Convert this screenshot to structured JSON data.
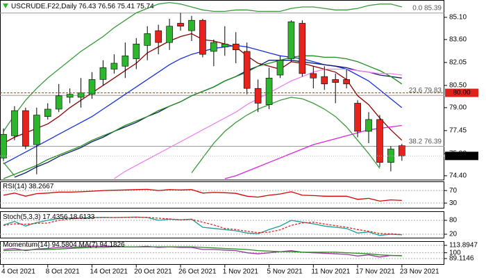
{
  "chart_data": [
    {
      "type": "candlestick",
      "title": "USCRUDE.F22,Daily",
      "categories": [
        "4 Oct 2021",
        null,
        null,
        null,
        "8 Oct 2021",
        null,
        null,
        null,
        "14 Oct 2021",
        null,
        null,
        null,
        "20 Oct 2021",
        null,
        null,
        null,
        "26 Oct 2021",
        null,
        null,
        null,
        "1 Nov 2021",
        null,
        null,
        null,
        "5 Nov 2021",
        null,
        null,
        null,
        "11 Nov 2021",
        null,
        null,
        null,
        "17 Nov 2021",
        null,
        null,
        null,
        "23 Nov 2021"
      ],
      "open": [
        75.6,
        77.1,
        78.8,
        76.5,
        78.4,
        78.9,
        79.7,
        79.7,
        79.9,
        80.9,
        81.6,
        81.8,
        82.3,
        83.2,
        84.2,
        83.4,
        84.7,
        84.2,
        84.9,
        82.8,
        83.1,
        83.3,
        82.8,
        80.3,
        79.2,
        81.2,
        82.3,
        84.7,
        81.3,
        81.1,
        80.9,
        80.9,
        79.3,
        77.4,
        78.2,
        75.3,
        76.43
      ],
      "high": [
        77.6,
        79.1,
        79.0,
        79.0,
        79.3,
        80.6,
        80.3,
        81.0,
        81.4,
        82.2,
        82.6,
        83.4,
        83.7,
        84.5,
        84.6,
        85.0,
        85.4,
        85.2,
        85.0,
        83.6,
        84.5,
        84.1,
        83.4,
        80.9,
        81.7,
        82.5,
        84.9,
        84.9,
        81.8,
        81.8,
        81.3,
        81.6,
        79.5,
        78.7,
        78.5,
        76.4,
        76.56
      ],
      "low": [
        75.4,
        76.8,
        76.2,
        74.5,
        78.2,
        78.7,
        79.3,
        79.0,
        79.6,
        80.5,
        81.3,
        81.0,
        81.6,
        82.2,
        82.6,
        82.9,
        84.2,
        83.5,
        82.4,
        81.8,
        82.5,
        82.0,
        79.9,
        78.7,
        78.9,
        81.0,
        82.1,
        81.1,
        80.3,
        80.2,
        79.3,
        80.3,
        77.0,
        76.6,
        75.0,
        74.7,
        75.41
      ],
      "close": [
        77.2,
        78.8,
        76.4,
        78.5,
        78.9,
        79.8,
        79.9,
        80.0,
        80.9,
        81.7,
        82.0,
        82.5,
        83.3,
        84.0,
        83.4,
        84.5,
        84.5,
        84.9,
        82.6,
        83.4,
        83.3,
        82.9,
        80.3,
        79.3,
        81.0,
        82.2,
        84.8,
        81.3,
        81.0,
        80.6,
        80.7,
        80.6,
        77.4,
        78.2,
        75.3,
        76.2,
        75.74
      ],
      "up_color": "#2db52d",
      "down_color": "#e8221c",
      "series": [
        {
          "color": "#8b0000",
          "values": [
            76.6,
            77.0,
            77.3,
            77.6,
            77.9,
            78.4,
            79.0,
            79.5,
            80.0,
            80.5,
            81.0,
            81.5,
            82.0,
            82.7,
            83.1,
            83.5,
            83.8,
            84.0,
            83.6,
            83.5,
            83.3,
            83.1,
            82.5,
            82.0,
            81.8,
            81.6,
            82.1,
            82.0,
            81.8,
            81.6,
            81.4,
            80.9,
            79.8,
            79.2,
            78.3,
            77.5,
            76.8
          ]
        },
        {
          "color": "#1530e0",
          "values": [
            75.2,
            75.6,
            76.0,
            76.4,
            76.8,
            77.2,
            77.6,
            78.0,
            78.4,
            78.9,
            79.4,
            79.9,
            80.4,
            80.9,
            81.4,
            81.9,
            82.3,
            82.6,
            82.8,
            83.0,
            83.1,
            83.2,
            83.1,
            82.9,
            82.7,
            82.5,
            82.4,
            82.3,
            82.1,
            81.9,
            81.8,
            81.6,
            81.2,
            80.8,
            80.2,
            79.6,
            79.0
          ]
        },
        {
          "color": "#0a1a6a",
          "values": [
            null,
            74.3,
            74.6,
            75.0,
            75.3,
            75.7,
            76.0,
            76.3,
            76.7,
            77.0,
            77.4,
            77.7,
            78.0,
            78.4,
            78.7,
            79.1,
            79.4,
            79.8,
            80.1,
            80.4,
            80.8,
            81.1,
            81.5,
            81.8,
            82.2,
            82.2,
            82.2,
            82.1,
            82.0,
            81.9,
            81.8,
            81.7,
            81.5,
            81.4,
            81.2,
            81.1,
            81.0
          ]
        },
        {
          "color": "#1e8c1e",
          "values": [
            74.2,
            74.5,
            74.8,
            75.1,
            75.5,
            75.8,
            76.1,
            76.4,
            76.8,
            77.1,
            77.4,
            77.8,
            78.1,
            78.4,
            78.8,
            79.1,
            79.4,
            79.8,
            80.1,
            80.4,
            80.8,
            81.1,
            81.4,
            81.8,
            82.0,
            82.2,
            82.4,
            82.5,
            82.5,
            82.4,
            82.4,
            82.3,
            82.1,
            81.8,
            81.5,
            81.1,
            80.6
          ]
        },
        {
          "color": "#ee82ee",
          "values": [
            null,
            null,
            null,
            null,
            null,
            null,
            null,
            null,
            null,
            null,
            74.2,
            74.7,
            75.1,
            75.5,
            75.9,
            76.3,
            76.7,
            77.1,
            77.5,
            77.9,
            78.3,
            78.7,
            79.2,
            79.6,
            80.0,
            80.4,
            80.8,
            81.1,
            81.4,
            81.6,
            81.6,
            81.6,
            81.5,
            81.4,
            81.3,
            81.3,
            81.2
          ]
        },
        {
          "color": "#e020e0",
          "values": [
            null,
            null,
            null,
            null,
            null,
            null,
            null,
            null,
            null,
            null,
            null,
            null,
            null,
            null,
            null,
            null,
            null,
            null,
            null,
            null,
            74.2,
            74.4,
            74.7,
            75.0,
            75.3,
            75.6,
            75.9,
            76.2,
            76.5,
            76.7,
            76.9,
            77.1,
            77.3,
            77.5,
            77.6,
            77.7,
            77.8
          ]
        },
        {
          "color": "#3a9a3a",
          "values": [
            77.4,
            78.5,
            79.5,
            80.3,
            81.0,
            81.6,
            82.2,
            82.8,
            83.3,
            83.8,
            84.4,
            84.9,
            85.4,
            85.7,
            86.0,
            86.1,
            86.0,
            85.8,
            85.6,
            85.5,
            85.5,
            85.6,
            85.6,
            85.5,
            85.5,
            85.5,
            85.7,
            85.8,
            85.8,
            85.7,
            85.6,
            85.6,
            85.7,
            85.9,
            86.0,
            86.0,
            85.8
          ]
        },
        {
          "color": "#3a9a3a",
          "values": [
            75.3,
            74.4,
            null,
            null,
            null,
            null,
            null,
            null,
            null,
            null,
            null,
            null,
            null,
            null,
            null,
            null,
            null,
            74.6,
            75.6,
            76.6,
            77.4,
            78.0,
            78.5,
            78.9,
            79.2,
            79.5,
            79.7,
            79.6,
            79.3,
            78.9,
            78.4,
            77.7,
            76.8,
            75.9,
            74.9,
            null,
            null
          ]
        }
      ],
      "levels": [
        {
          "label": "0.0",
          "value": 85.39
        },
        {
          "label": "23.6",
          "value": 79.83
        },
        {
          "label": "38.2",
          "value": 76.39
        }
      ],
      "hlines": [
        {
          "value": 80,
          "label": "80.00",
          "color": "#e0221c"
        }
      ],
      "ylim": [
        74.16,
        86.27
      ],
      "yticks": [
        {
          "value": 85.1,
          "label": "85.10"
        },
        {
          "value": 83.6,
          "label": "83.60"
        },
        82.05,
        {
          "value": 80.5,
          "label": "80.50"
        },
        {
          "value": 79,
          "label": "79.00"
        },
        77.45,
        {
          "value": 75.9,
          "label": "75.90"
        },
        {
          "value": 74.4,
          "label": "74.40"
        }
      ]
    },
    {
      "type": "line",
      "series": [
        {
          "name": "RSI(14)",
          "color": "#d40000",
          "values": [
            55,
            62,
            52,
            60,
            62,
            65,
            65,
            66,
            68,
            70,
            71,
            72,
            73,
            74,
            70,
            73,
            72,
            73,
            62,
            64,
            63,
            61,
            52,
            49,
            55,
            59,
            66,
            55,
            54,
            52,
            52,
            52,
            42,
            45,
            36,
            40,
            38.2667
          ]
        }
      ],
      "ylim": [
        17,
        97
      ],
      "yticks": [
        30,
        70
      ],
      "grid": true
    },
    {
      "type": "line",
      "series": [
        {
          "name": "Stoch(5,3,3)",
          "color": "#1a9a9a",
          "values": [
            60,
            75,
            55,
            70,
            80,
            88,
            90,
            90,
            92,
            93,
            92,
            93,
            94,
            92,
            80,
            85,
            82,
            85,
            50,
            45,
            40,
            35,
            25,
            22,
            40,
            55,
            80,
            72,
            65,
            55,
            50,
            45,
            25,
            30,
            15,
            20,
            17.4356
          ]
        },
        {
          "color": "#e0221c",
          "dashed": true,
          "values": [
            58,
            65,
            63,
            67,
            68,
            80,
            86,
            89,
            91,
            92,
            92,
            93,
            93,
            93,
            89,
            86,
            82,
            84,
            72,
            60,
            45,
            40,
            33,
            27,
            29,
            39,
            58,
            69,
            72,
            64,
            57,
            50,
            40,
            33,
            23,
            22,
            18.6133
          ]
        }
      ],
      "ylim": [
        5,
        113
      ],
      "yticks": [
        20,
        80
      ],
      "grid": true
    },
    {
      "type": "line",
      "series": [
        {
          "name": "Momentum(14)",
          "color": "#9a309a",
          "values": [
            106,
            108,
            104,
            107,
            108,
            110,
            110,
            111,
            112,
            112,
            112,
            111,
            111,
            112,
            110,
            111,
            110,
            110,
            106,
            106,
            105,
            104,
            100,
            98,
            100,
            102,
            104,
            101,
            100,
            99,
            98,
            97,
            94,
            96,
            92,
            95,
            94.5804
          ]
        },
        {
          "name": "MA(7)",
          "color": "#2a8a2a",
          "values": [
            104,
            105,
            105,
            106,
            106,
            107,
            108,
            109,
            110,
            110,
            111,
            111,
            111,
            111,
            111,
            111,
            111,
            111,
            110,
            109,
            108,
            107,
            106,
            104,
            103,
            102,
            102,
            101,
            101,
            101,
            101,
            100,
            99,
            98,
            96,
            95,
            94.1826
          ]
        }
      ],
      "ylim": [
        78.7,
        123
      ],
      "yticks": [
        113.8947,
        100,
        89.1146
      ],
      "grid": true
    }
  ]
}
